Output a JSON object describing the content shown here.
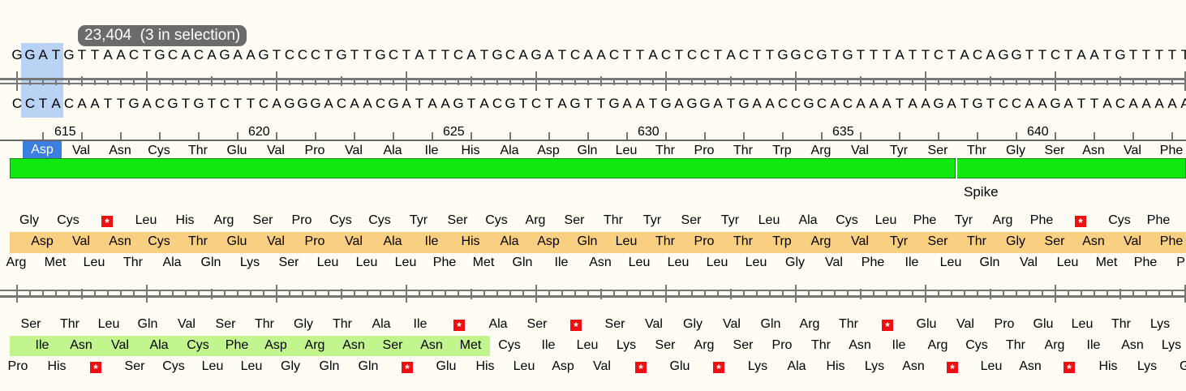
{
  "selection_badge": "23,404  (3 in selection)",
  "top_strand": "GGATGTTAACTGCACAGAAGTCCCTGTTGCTATTCATGCAGATCAACTTACTCCTACTTGGCGTGTTTATTCTACAGGTTCTAATGTTTTT",
  "bottom_strand": "CCTACAATTGACGTGTCTTCAGGGACAACGATAAGTACGTCTAGTTGAATGAGGATGAACCGCACAAATAAGATGTCCAAGATTACAAAAA",
  "positions": [
    "615",
    "620",
    "625",
    "630",
    "635",
    "640"
  ],
  "translation": [
    "Asp",
    "Val",
    "Asn",
    "Cys",
    "Thr",
    "Glu",
    "Val",
    "Pro",
    "Val",
    "Ala",
    "Ile",
    "His",
    "Ala",
    "Asp",
    "Gln",
    "Leu",
    "Thr",
    "Pro",
    "Thr",
    "Trp",
    "Arg",
    "Val",
    "Tyr",
    "Ser",
    "Thr",
    "Gly",
    "Ser",
    "Asn",
    "Val",
    "Phe"
  ],
  "feature_label": "Spike",
  "frame_plus2": [
    "Gly",
    "Cys",
    "*",
    "Leu",
    "His",
    "Arg",
    "Ser",
    "Pro",
    "Cys",
    "Cys",
    "Tyr",
    "Ser",
    "Cys",
    "Arg",
    "Ser",
    "Thr",
    "Tyr",
    "Ser",
    "Tyr",
    "Leu",
    "Ala",
    "Cys",
    "Leu",
    "Phe",
    "Tyr",
    "Arg",
    "Phe",
    "*",
    "Cys",
    "Phe"
  ],
  "frame_plus1": [
    "Asp",
    "Val",
    "Asn",
    "Cys",
    "Thr",
    "Glu",
    "Val",
    "Pro",
    "Val",
    "Ala",
    "Ile",
    "His",
    "Ala",
    "Asp",
    "Gln",
    "Leu",
    "Thr",
    "Pro",
    "Thr",
    "Trp",
    "Arg",
    "Val",
    "Tyr",
    "Ser",
    "Thr",
    "Gly",
    "Ser",
    "Asn",
    "Val",
    "Phe"
  ],
  "frame_plus3": [
    "Arg",
    "Met",
    "Leu",
    "Thr",
    "Ala",
    "Gln",
    "Lys",
    "Ser",
    "Leu",
    "Leu",
    "Leu",
    "Phe",
    "Met",
    "Gln",
    "Ile",
    "Asn",
    "Leu",
    "Leu",
    "Leu",
    "Leu",
    "Gly",
    "Val",
    "Phe",
    "Ile",
    "Leu",
    "Gln",
    "Val",
    "Leu",
    "Met",
    "Phe",
    "Ph"
  ],
  "frame_minus1": [
    "Ser",
    "Thr",
    "Leu",
    "Gln",
    "Val",
    "Ser",
    "Thr",
    "Gly",
    "Thr",
    "Ala",
    "Ile",
    "*",
    "Ala",
    "Ser",
    "*",
    "Ser",
    "Val",
    "Gly",
    "Val",
    "Gln",
    "Arg",
    "Thr",
    "*",
    "Glu",
    "Val",
    "Pro",
    "Glu",
    "Leu",
    "Thr",
    "Lys"
  ],
  "frame_minus2": [
    "Ile",
    "Asn",
    "Val",
    "Ala",
    "Cys",
    "Phe",
    "Asp",
    "Arg",
    "Asn",
    "Ser",
    "Asn",
    "Met",
    "Cys",
    "Ile",
    "Leu",
    "Lys",
    "Ser",
    "Arg",
    "Ser",
    "Pro",
    "Thr",
    "Asn",
    "Ile",
    "Arg",
    "Cys",
    "Thr",
    "Arg",
    "Ile",
    "Asn",
    "Lys"
  ],
  "frame_minus3": [
    "Pro",
    "His",
    "*",
    "Ser",
    "Cys",
    "Leu",
    "Leu",
    "Gly",
    "Gln",
    "Gln",
    "*",
    "Glu",
    "His",
    "Leu",
    "Asp",
    "Val",
    "*",
    "Glu",
    "*",
    "Lys",
    "Ala",
    "His",
    "Lys",
    "Asn",
    "*",
    "Leu",
    "Asn",
    "*",
    "His",
    "Lys",
    "Gl"
  ]
}
